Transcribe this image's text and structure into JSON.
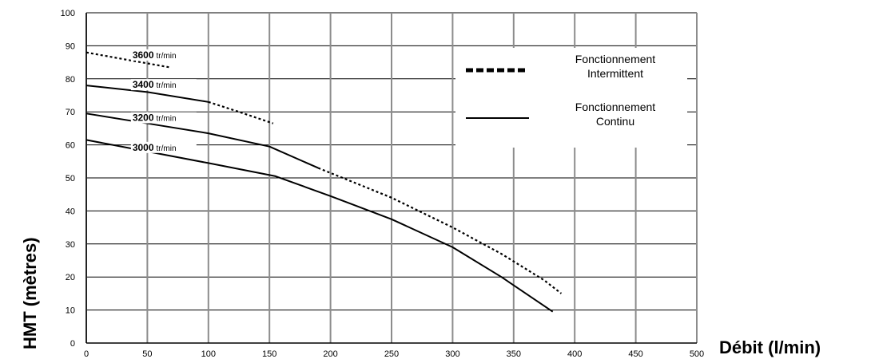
{
  "chart_data": {
    "type": "line",
    "title": "",
    "xlabel": "Débit (l/min)",
    "ylabel": "HMT (mètres)",
    "xlim": [
      0,
      500
    ],
    "ylim": [
      0,
      100
    ],
    "x_ticks": [
      "0",
      "50",
      "100",
      "150",
      "200",
      "250",
      "300",
      "350",
      "400",
      "450",
      "500"
    ],
    "y_ticks": [
      "0",
      "10",
      "20",
      "30",
      "40",
      "50",
      "60",
      "70",
      "80",
      "90",
      "100"
    ],
    "grid": true,
    "legend_position": "top-right",
    "legend": [
      {
        "style": "dotted",
        "line1": "Fonctionnement",
        "line2": "Intermittent"
      },
      {
        "style": "solid",
        "line1": "Fonctionnement",
        "line2": "Continu"
      }
    ],
    "series": [
      {
        "speed": "3600",
        "unit": "tr/min",
        "label_at": [
          30,
          86.5
        ],
        "continuous": [],
        "intermittent": [
          [
            0,
            88
          ],
          [
            30,
            86
          ],
          [
            68,
            83.5
          ]
        ]
      },
      {
        "speed": "3400",
        "unit": "tr/min",
        "label_at": [
          30,
          77.5
        ],
        "continuous": [
          [
            0,
            78
          ],
          [
            50,
            76
          ],
          [
            100,
            73
          ]
        ],
        "intermittent": [
          [
            100,
            73
          ],
          [
            125,
            70
          ],
          [
            153,
            66.5
          ]
        ]
      },
      {
        "speed": "3200",
        "unit": "tr/min",
        "label_at": [
          30,
          67.5
        ],
        "continuous": [
          [
            0,
            69.5
          ],
          [
            50,
            66.5
          ],
          [
            100,
            63.5
          ],
          [
            150,
            59.5
          ],
          [
            190,
            53
          ]
        ],
        "intermittent": [
          [
            190,
            53
          ],
          [
            250,
            44
          ],
          [
            300,
            35
          ],
          [
            340,
            27
          ],
          [
            375,
            19
          ],
          [
            389,
            15
          ]
        ]
      },
      {
        "speed": "3000",
        "unit": "tr/min",
        "label_at": [
          30,
          58.5
        ],
        "continuous": [
          [
            0,
            61.5
          ],
          [
            50,
            58
          ],
          [
            100,
            54.5
          ],
          [
            155,
            50.5
          ],
          [
            200,
            44.5
          ],
          [
            250,
            37.5
          ],
          [
            300,
            29
          ],
          [
            340,
            20
          ],
          [
            370,
            12.5
          ],
          [
            382,
            9.5
          ]
        ],
        "intermittent": []
      }
    ]
  }
}
